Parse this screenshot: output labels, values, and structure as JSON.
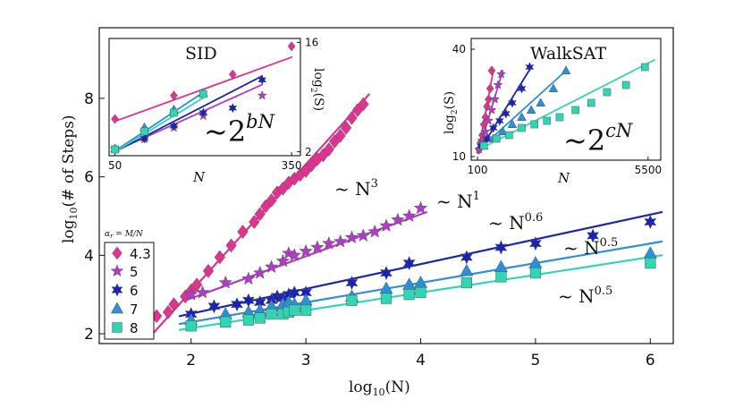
{
  "chart_data": [
    {
      "id": "main",
      "type": "scatter",
      "xlabel": "log",
      "xlabel_sub": "10",
      "xlabel_tail": "(N)",
      "ylabel": "log",
      "ylabel_sub": "10",
      "ylabel_tail": "(# of Steps)",
      "xlim": [
        1.2,
        6.2
      ],
      "ylim": [
        1.75,
        9.8
      ],
      "xticks": [
        2,
        3,
        4,
        5,
        6
      ],
      "yticks": [
        2,
        4,
        6,
        8
      ],
      "legend_title": "α",
      "legend_title_sub": "r",
      "legend_title_tail": " = M/N",
      "series": [
        {
          "name": "4.3",
          "color": "#e0338f",
          "marker": "diamond",
          "fit": {
            "x": [
              1.65,
              3.55
            ],
            "y": [
              1.95,
              8.1
            ]
          },
          "annotation": {
            "base": "~ N",
            "exp": "3"
          },
          "x": [
            1.7,
            1.8,
            1.85,
            1.95,
            2.0,
            2.05,
            2.15,
            2.25,
            2.35,
            2.45,
            2.55,
            2.6,
            2.65,
            2.7,
            2.75,
            2.8,
            2.85,
            2.9,
            2.95,
            3.0,
            3.05,
            3.1,
            3.15,
            3.2,
            3.25,
            3.3,
            3.35,
            3.4,
            3.45,
            3.5
          ],
          "y": [
            2.45,
            2.55,
            2.75,
            2.95,
            3.1,
            3.25,
            3.6,
            3.95,
            4.25,
            4.6,
            4.85,
            5.05,
            5.25,
            5.4,
            5.6,
            5.7,
            5.85,
            5.95,
            6.05,
            6.15,
            6.3,
            6.45,
            6.55,
            6.7,
            6.9,
            7.05,
            7.25,
            7.5,
            7.7,
            7.85
          ]
        },
        {
          "name": "5",
          "color": "#b23ac8",
          "marker": "star",
          "fit": {
            "x": [
              1.95,
              4.05
            ],
            "y": [
              2.85,
              5.1
            ]
          },
          "annotation": {
            "base": "~ N",
            "exp": "1"
          },
          "x": [
            2.0,
            2.1,
            2.3,
            2.5,
            2.6,
            2.7,
            2.8,
            2.85,
            2.9,
            3.0,
            3.1,
            3.2,
            3.3,
            3.4,
            3.5,
            3.6,
            3.7,
            3.8,
            3.9,
            4.0
          ],
          "y": [
            3.0,
            3.05,
            3.3,
            3.4,
            3.55,
            3.7,
            3.85,
            4.05,
            4.0,
            4.1,
            4.2,
            4.3,
            4.35,
            4.45,
            4.5,
            4.6,
            4.75,
            4.9,
            5.0,
            5.2
          ]
        },
        {
          "name": "6",
          "color": "#1a23b5",
          "marker": "star6",
          "fit": {
            "x": [
              1.9,
              6.1
            ],
            "y": [
              2.45,
              5.1
            ]
          },
          "annotation": {
            "base": "~ N",
            "exp": "0.6"
          },
          "x": [
            2.0,
            2.2,
            2.4,
            2.5,
            2.6,
            2.7,
            2.75,
            2.8,
            2.85,
            2.9,
            3.0,
            3.4,
            3.7,
            3.9,
            4.4,
            4.7,
            5.0,
            5.5,
            6.0
          ],
          "y": [
            2.5,
            2.7,
            2.75,
            2.85,
            2.8,
            2.85,
            2.95,
            2.9,
            3.0,
            3.05,
            3.05,
            3.3,
            3.55,
            3.8,
            3.95,
            4.2,
            4.3,
            4.5,
            4.85
          ]
        },
        {
          "name": "7",
          "color": "#2b8fd9",
          "marker": "triangle",
          "fit": {
            "x": [
              1.9,
              6.1
            ],
            "y": [
              2.25,
              4.35
            ]
          },
          "annotation": {
            "base": "~ N",
            "exp": "0.5"
          },
          "x": [
            2.0,
            2.3,
            2.5,
            2.6,
            2.7,
            2.8,
            2.85,
            2.9,
            3.0,
            3.4,
            3.7,
            3.9,
            4.0,
            4.4,
            4.7,
            5.0,
            6.0
          ],
          "y": [
            2.35,
            2.5,
            2.55,
            2.6,
            2.7,
            2.75,
            2.8,
            2.75,
            2.85,
            2.95,
            3.15,
            3.25,
            3.3,
            3.6,
            3.7,
            3.8,
            4.05
          ]
        },
        {
          "name": "8",
          "color": "#2fd6b3",
          "marker": "square",
          "fit": {
            "x": [
              1.9,
              6.1
            ],
            "y": [
              2.1,
              4.0
            ]
          },
          "annotation": {
            "base": "~ N",
            "exp": "0.5"
          },
          "x": [
            2.0,
            2.3,
            2.5,
            2.6,
            2.7,
            2.8,
            2.85,
            2.9,
            3.0,
            3.4,
            3.7,
            3.9,
            4.0,
            4.4,
            4.7,
            5.0,
            6.0
          ],
          "y": [
            2.2,
            2.3,
            2.35,
            2.4,
            2.5,
            2.5,
            2.55,
            2.6,
            2.6,
            2.85,
            2.9,
            3.0,
            3.05,
            3.3,
            3.45,
            3.55,
            3.8
          ]
        }
      ]
    },
    {
      "id": "inset_sid",
      "type": "scatter",
      "title": "SID",
      "xlabel": "N",
      "ylabel": "log",
      "ylabel_sub": "2",
      "ylabel_tail": "(S)",
      "xlim": [
        40,
        365
      ],
      "ylim": [
        1.5,
        16.5
      ],
      "xticks": [
        50,
        350
      ],
      "yticks": [
        2,
        16
      ],
      "formula_base": "~2",
      "formula_exp": "bN",
      "series": [
        {
          "name": "4.3",
          "color": "#e0338f",
          "marker": "diamond",
          "fit": {
            "x": [
              50,
              350
            ],
            "y": [
              5.9,
              14.1
            ]
          },
          "x": [
            50,
            150,
            250,
            350
          ],
          "y": [
            6.2,
            9.2,
            11.9,
            15.5
          ]
        },
        {
          "name": "5",
          "color": "#b23ac8",
          "marker": "star",
          "fit": {
            "x": [
              50,
              300
            ],
            "y": [
              2.1,
              10.6
            ]
          },
          "x": [
            50,
            100,
            150,
            200,
            300
          ],
          "y": [
            2.4,
            3.6,
            5.1,
            6.6,
            9.2
          ]
        },
        {
          "name": "6",
          "color": "#1a23b5",
          "marker": "star6",
          "fit": {
            "x": [
              50,
              300
            ],
            "y": [
              2.0,
              11.7
            ]
          },
          "x": [
            50,
            100,
            150,
            200,
            250,
            300
          ],
          "y": [
            2.3,
            3.7,
            5.3,
            7.0,
            7.6,
            11.2
          ]
        },
        {
          "name": "7",
          "color": "#2b8fd9",
          "marker": "triangle",
          "fit": {
            "x": [
              50,
              200
            ],
            "y": [
              2.1,
              9.6
            ]
          },
          "x": [
            50,
            100,
            150,
            200
          ],
          "y": [
            2.4,
            5.1,
            7.4,
            9.5
          ]
        },
        {
          "name": "8",
          "color": "#2fd6b3",
          "marker": "square",
          "fit": {
            "x": [
              50,
              200
            ],
            "y": [
              2.0,
              8.9
            ]
          },
          "x": [
            50,
            100,
            150,
            200
          ],
          "y": [
            2.3,
            4.6,
            7.0,
            9.4
          ]
        }
      ]
    },
    {
      "id": "inset_walksat",
      "type": "scatter",
      "title": "WalkSAT",
      "xlabel": "N",
      "ylabel": "log",
      "ylabel_sub": "2",
      "ylabel_tail": "(S)",
      "xlim": [
        -100,
        5900
      ],
      "ylim": [
        9,
        43
      ],
      "xticks": [
        100,
        5500
      ],
      "yticks": [
        10,
        40
      ],
      "formula_base": "~2",
      "formula_exp": "cN",
      "series": [
        {
          "name": "4.3",
          "color": "#e0338f",
          "marker": "diamond",
          "fit": {
            "x": [
              120,
              600
            ],
            "y": [
              11,
              34
            ]
          },
          "x": [
            150,
            200,
            250,
            300,
            350,
            400,
            450,
            500,
            550
          ],
          "y": [
            12,
            14,
            16,
            19,
            21,
            24,
            26,
            29,
            34
          ]
        },
        {
          "name": "5",
          "color": "#b23ac8",
          "marker": "star",
          "fit": {
            "x": [
              120,
              900
            ],
            "y": [
              11,
              34
            ]
          },
          "x": [
            150,
            250,
            350,
            450,
            550,
            650,
            750,
            850
          ],
          "y": [
            12,
            14.5,
            17,
            20,
            23,
            26,
            30,
            33
          ]
        },
        {
          "name": "6",
          "color": "#1a23b5",
          "marker": "star6",
          "fit": {
            "x": [
              120,
              1800
            ],
            "y": [
              11,
              35
            ]
          },
          "x": [
            200,
            400,
            600,
            800,
            1000,
            1200,
            1500,
            1750
          ],
          "y": [
            13,
            15,
            18,
            20,
            22,
            25,
            29,
            35
          ]
        },
        {
          "name": "7",
          "color": "#2b8fd9",
          "marker": "triangle",
          "fit": {
            "x": [
              150,
              2900
            ],
            "y": [
              12,
              34
            ]
          },
          "x": [
            300,
            600,
            900,
            1200,
            1500,
            1800,
            2100,
            2500,
            2900
          ],
          "y": [
            13,
            15,
            17,
            19,
            21,
            23,
            25,
            29,
            34
          ]
        },
        {
          "name": "8",
          "color": "#2fd6b3",
          "marker": "square",
          "fit": {
            "x": [
              150,
              5700
            ],
            "y": [
              12,
              37
            ]
          },
          "x": [
            300,
            700,
            1100,
            1500,
            1900,
            2300,
            2700,
            3200,
            3700,
            4200,
            4800,
            5400
          ],
          "y": [
            13,
            15,
            16,
            18,
            19,
            20,
            21,
            23,
            25,
            28,
            30,
            35
          ]
        }
      ]
    }
  ]
}
